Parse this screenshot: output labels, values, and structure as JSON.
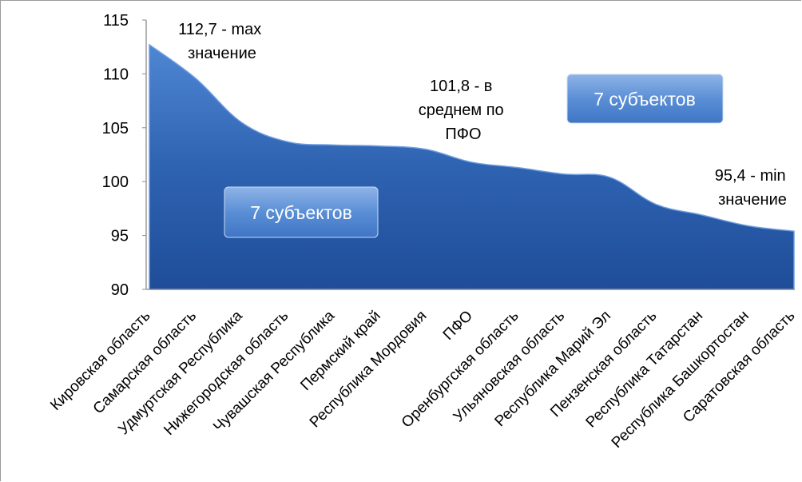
{
  "chart_data": {
    "type": "area",
    "title": "",
    "xlabel": "",
    "ylabel": "",
    "ylim": [
      90,
      115
    ],
    "yticks": [
      "90",
      "95",
      "100",
      "105",
      "110",
      "115"
    ],
    "grid": false,
    "legend": "none",
    "categories": [
      "Кировская область",
      "Самарская область",
      "Удмуртская Республика",
      "Нижегородская область",
      "Чувашская Республика",
      "Пермский край",
      "Республика Мордовия",
      "ПФО",
      "Оренбургская область",
      "Ульяновская область",
      "Республика Марий Эл",
      "Пензенская область",
      "Республика Татарстан",
      "Республика Башкортостан",
      "Саратовская область"
    ],
    "series": [
      {
        "values": [
          112.7,
          109.6,
          105.5,
          103.7,
          103.4,
          103.3,
          103.0,
          101.8,
          101.3,
          100.7,
          100.4,
          97.9,
          96.9,
          95.9,
          95.4
        ]
      }
    ],
    "area_color": "#2f63b0",
    "annotations": {
      "max_label": [
        "112,7 - max",
        "значение"
      ],
      "avg_label": [
        "101,8 - в",
        "среднем по",
        "ПФО"
      ],
      "min_label": [
        "95,4 - min",
        "значение"
      ],
      "box_left": "7 субъектов",
      "box_right": "7 субъектов"
    }
  }
}
